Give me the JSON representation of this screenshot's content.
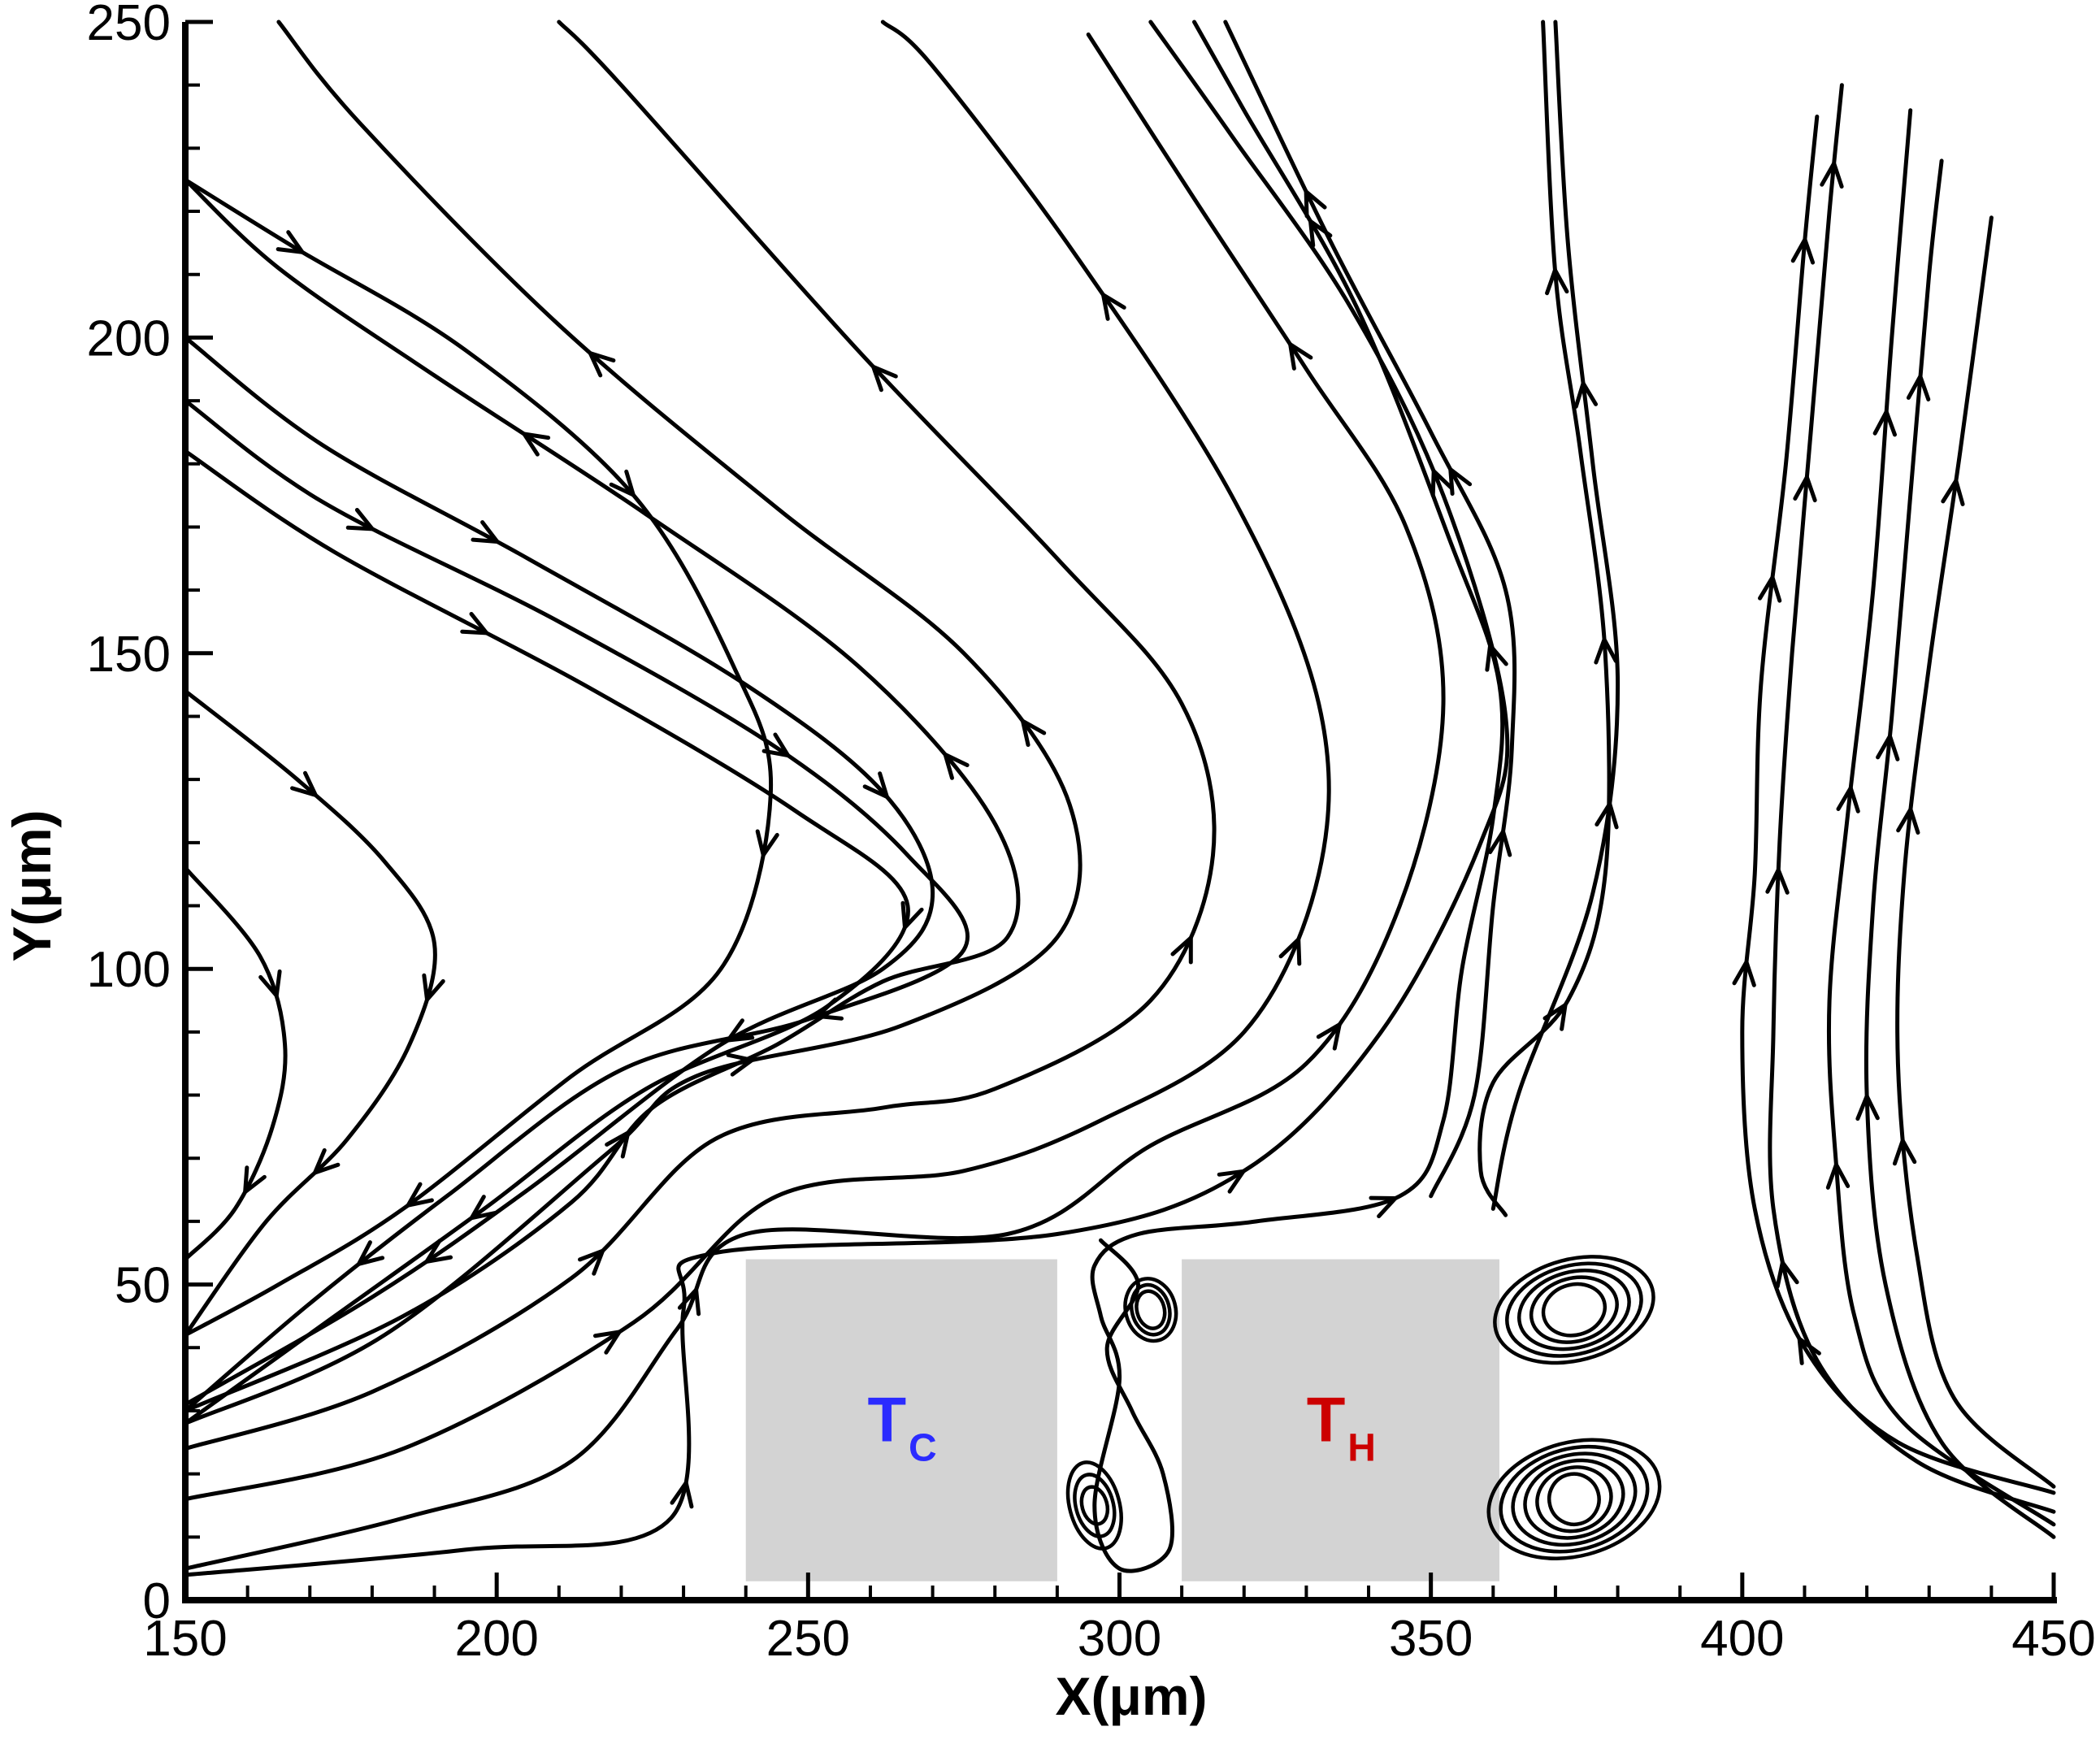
{
  "chart_data": {
    "type": "streamline",
    "xlabel": "X(μm)",
    "ylabel": "Y(μm)",
    "xlim": [
      150,
      450
    ],
    "ylim": [
      0,
      250
    ],
    "x_ticks": [
      150,
      200,
      250,
      300,
      350,
      400,
      450
    ],
    "y_ticks": [
      0,
      50,
      100,
      150,
      200,
      250
    ],
    "grid": false,
    "blocks": [
      {
        "label": "T",
        "subscript": "C",
        "x_range": [
          240,
          290
        ],
        "y_range": [
          3,
          54
        ],
        "fill": "#d3d3d3",
        "label_color": "#2b2bff"
      },
      {
        "label": "T",
        "subscript": "H",
        "x_range": [
          310,
          361
        ],
        "y_range": [
          3,
          54
        ],
        "fill": "#d3d3d3",
        "label_color": "#cc0000"
      }
    ],
    "streamlines": [
      {
        "points": [
          [
            150,
            116
          ],
          [
            162,
            102
          ],
          [
            166,
            88
          ],
          [
            164,
            75
          ],
          [
            158,
            62
          ],
          [
            150,
            54
          ]
        ],
        "arrows": [
          0.35,
          0.8
        ]
      },
      {
        "points": [
          [
            150,
            144
          ],
          [
            168,
            130
          ],
          [
            182,
            117
          ],
          [
            190,
            104
          ],
          [
            186,
            88
          ],
          [
            176,
            73
          ],
          [
            163,
            60
          ],
          [
            150,
            42
          ]
        ],
        "arrows": [
          0.2,
          0.5,
          0.75
        ]
      },
      {
        "points": [
          [
            150,
            225
          ],
          [
            168,
            214
          ],
          [
            195,
            198
          ],
          [
            222,
            175
          ],
          [
            238,
            148
          ],
          [
            244,
            128
          ],
          [
            236,
            100
          ],
          [
            212,
            83
          ],
          [
            185,
            62
          ],
          [
            165,
            50
          ],
          [
            150,
            42
          ]
        ],
        "arrows": [
          0.08,
          0.32,
          0.55,
          0.85
        ]
      },
      {
        "points": [
          [
            150,
            200
          ],
          [
            172,
            183
          ],
          [
            205,
            165
          ],
          [
            240,
            145
          ],
          [
            262,
            128
          ],
          [
            270,
            112
          ],
          [
            262,
            100
          ],
          [
            236,
            88
          ],
          [
            205,
            65
          ],
          [
            180,
            48
          ],
          [
            150,
            31
          ]
        ],
        "arrows": [
          0.2,
          0.45,
          0.65,
          0.85
        ]
      },
      {
        "points": [
          [
            150,
            190
          ],
          [
            172,
            174
          ],
          [
            210,
            155
          ],
          [
            245,
            135
          ],
          [
            266,
            118
          ],
          [
            275,
            103
          ],
          [
            250,
            92
          ],
          [
            220,
            84
          ],
          [
            192,
            64
          ],
          [
            170,
            47
          ],
          [
            150,
            30
          ]
        ],
        "arrows": [
          0.12,
          0.37,
          0.6,
          0.88
        ]
      },
      {
        "points": [
          [
            150,
            182
          ],
          [
            174,
            166
          ],
          [
            214,
            145
          ],
          [
            248,
            125
          ],
          [
            266,
            110
          ],
          [
            253,
            94
          ],
          [
            224,
            81
          ],
          [
            198,
            62
          ],
          [
            174,
            45
          ],
          [
            150,
            28
          ]
        ],
        "arrows": [
          0.2,
          0.5,
          0.8
        ]
      },
      {
        "points": [
          [
            150,
            30
          ],
          [
            185,
            45
          ],
          [
            212,
            63
          ],
          [
            225,
            78
          ],
          [
            245,
            88
          ],
          [
            262,
            98
          ],
          [
            282,
            105
          ],
          [
            280,
            123
          ],
          [
            258,
            148
          ],
          [
            224,
            172
          ],
          [
            190,
            194
          ],
          [
            165,
            211
          ],
          [
            150,
            225
          ]
        ],
        "arrows": [
          0.25,
          0.55,
          0.8
        ]
      },
      {
        "points": [
          [
            150,
            28
          ],
          [
            182,
            42
          ],
          [
            218,
            71
          ],
          [
            232,
            83
          ],
          [
            265,
            91
          ],
          [
            290,
            105
          ],
          [
            292,
            126
          ],
          [
            275,
            150
          ],
          [
            245,
            173
          ],
          [
            210,
            202
          ],
          [
            178,
            234
          ],
          [
            165,
            250
          ]
        ],
        "arrows": [
          0.3,
          0.55,
          0.8
        ]
      },
      {
        "points": [
          [
            150,
            24
          ],
          [
            180,
            33
          ],
          [
            212,
            51
          ],
          [
            235,
            73
          ],
          [
            262,
            78
          ],
          [
            280,
            81
          ],
          [
            305,
            95
          ],
          [
            315,
            118
          ],
          [
            310,
            142
          ],
          [
            290,
            165
          ],
          [
            258,
            198
          ],
          [
            220,
            240
          ],
          [
            210,
            250
          ]
        ],
        "arrows": [
          0.2,
          0.5,
          0.8
        ]
      },
      {
        "points": [
          [
            150,
            16
          ],
          [
            185,
            24
          ],
          [
            222,
            44
          ],
          [
            245,
            64
          ],
          [
            275,
            68
          ],
          [
            297,
            76
          ],
          [
            320,
            90
          ],
          [
            332,
            115
          ],
          [
            332,
            142
          ],
          [
            318,
            175
          ],
          [
            293,
            213
          ],
          [
            270,
            243
          ],
          [
            262,
            250
          ]
        ],
        "arrows": [
          0.2,
          0.55,
          0.85
        ]
      },
      {
        "points": [
          [
            150,
            5
          ],
          [
            185,
            13
          ],
          [
            212,
            22
          ],
          [
            229,
            43
          ],
          [
            240,
            58
          ],
          [
            282,
            58
          ],
          [
            305,
            72
          ],
          [
            330,
            85
          ],
          [
            345,
            110
          ],
          [
            352,
            142
          ],
          [
            346,
            170
          ],
          [
            330,
            195
          ],
          [
            312,
            222
          ],
          [
            295,
            248
          ]
        ],
        "arrows": [
          0.25,
          0.55,
          0.85
        ]
      },
      {
        "points": [
          [
            150,
            4
          ],
          [
            195,
            8
          ],
          [
            228,
            13
          ],
          [
            230,
            46
          ],
          [
            235,
            55
          ],
          [
            290,
            58
          ],
          [
            320,
            68
          ],
          [
            342,
            90
          ],
          [
            358,
            120
          ],
          [
            362,
            140
          ],
          [
            352,
            175
          ],
          [
            337,
            205
          ],
          [
            318,
            232
          ],
          [
            305,
            250
          ]
        ],
        "arrows": [
          0.2,
          0.5,
          0.8
        ]
      },
      {
        "points": [
          [
            297,
            57
          ],
          [
            303,
            50
          ],
          [
            298,
            40
          ],
          [
            302,
            30
          ],
          [
            307,
            20
          ],
          [
            308,
            8
          ],
          [
            300,
            5
          ],
          [
            296,
            15
          ],
          [
            300,
            35
          ],
          [
            297,
            45
          ],
          [
            296,
            53
          ],
          [
            303,
            58
          ],
          [
            322,
            60
          ],
          [
            345,
            64
          ],
          [
            352,
            76
          ],
          [
            355,
            100
          ],
          [
            360,
            124
          ],
          [
            361,
            145
          ],
          [
            353,
            168
          ],
          [
            338,
            205
          ],
          [
            320,
            236
          ],
          [
            312,
            250
          ]
        ],
        "arrows": [
          0.45,
          0.7,
          0.9
        ]
      },
      {
        "points": [
          [
            350,
            64
          ],
          [
            357,
            80
          ],
          [
            360,
            110
          ],
          [
            363,
            135
          ],
          [
            362,
            160
          ],
          [
            350,
            185
          ],
          [
            334,
            215
          ],
          [
            317,
            250
          ]
        ],
        "arrows": [
          0.3,
          0.6,
          0.85
        ]
      },
      {
        "points": [
          [
            362,
            61
          ],
          [
            358,
            68
          ],
          [
            360,
            82
          ],
          [
            372,
            95
          ],
          [
            378,
            115
          ],
          [
            378,
            150
          ],
          [
            374,
            182
          ],
          [
            370,
            210
          ],
          [
            368,
            250
          ]
        ],
        "arrows": [
          0.2,
          0.5,
          0.8
        ]
      },
      {
        "points": [
          [
            360,
            62
          ],
          [
            364,
            80
          ],
          [
            376,
            112
          ],
          [
            380,
            145
          ],
          [
            376,
            180
          ],
          [
            372,
            215
          ],
          [
            370,
            250
          ]
        ],
        "arrows": [
          0.35,
          0.7
        ]
      },
      {
        "points": [
          [
            450,
            17
          ],
          [
            425,
            25
          ],
          [
            410,
            40
          ],
          [
            402,
            62
          ],
          [
            400,
            90
          ],
          [
            402,
            115
          ],
          [
            403,
            145
          ],
          [
            407,
            180
          ],
          [
            410,
            215
          ],
          [
            412,
            235
          ]
        ],
        "arrows": [
          0.2,
          0.45,
          0.7,
          0.92
        ]
      },
      {
        "points": [
          [
            450,
            14
          ],
          [
            428,
            22
          ],
          [
            412,
            38
          ],
          [
            405,
            62
          ],
          [
            405,
            90
          ],
          [
            406,
            120
          ],
          [
            408,
            150
          ],
          [
            411,
            185
          ],
          [
            414,
            220
          ],
          [
            416,
            240
          ]
        ],
        "arrows": [
          0.25,
          0.5,
          0.75,
          0.95
        ]
      },
      {
        "points": [
          [
            450,
            12
          ],
          [
            426,
            28
          ],
          [
            418,
            45
          ],
          [
            415,
            70
          ],
          [
            414,
            95
          ],
          [
            417,
            125
          ],
          [
            421,
            160
          ],
          [
            424,
            200
          ],
          [
            427,
            236
          ]
        ],
        "arrows": [
          0.3,
          0.55,
          0.8
        ]
      },
      {
        "points": [
          [
            450,
            10
          ],
          [
            432,
            25
          ],
          [
            423,
            50
          ],
          [
            420,
            80
          ],
          [
            421,
            110
          ],
          [
            424,
            140
          ],
          [
            427,
            175
          ],
          [
            430,
            210
          ],
          [
            432,
            228
          ]
        ],
        "arrows": [
          0.35,
          0.6,
          0.85
        ]
      },
      {
        "points": [
          [
            450,
            18
          ],
          [
            434,
            32
          ],
          [
            428,
            55
          ],
          [
            425,
            85
          ],
          [
            426,
            115
          ],
          [
            430,
            148
          ],
          [
            435,
            182
          ],
          [
            440,
            219
          ]
        ],
        "arrows": [
          0.3,
          0.55,
          0.8
        ]
      }
    ],
    "vortices": [
      {
        "center": [
          373,
          46
        ],
        "rx": [
          13,
          11,
          9,
          7,
          5
        ],
        "ry": [
          8,
          7,
          6,
          5,
          4
        ]
      },
      {
        "center": [
          373,
          16
        ],
        "rx": [
          14,
          12,
          10,
          8,
          6,
          4
        ],
        "ry": [
          9,
          8,
          7,
          6,
          5,
          4
        ]
      },
      {
        "center": [
          305,
          46
        ],
        "rx": [
          4,
          3,
          2.2
        ],
        "ry": [
          5,
          4,
          3
        ]
      },
      {
        "center": [
          296,
          15
        ],
        "rx": [
          4,
          3,
          2
        ],
        "ry": [
          7,
          5,
          3
        ]
      }
    ]
  }
}
